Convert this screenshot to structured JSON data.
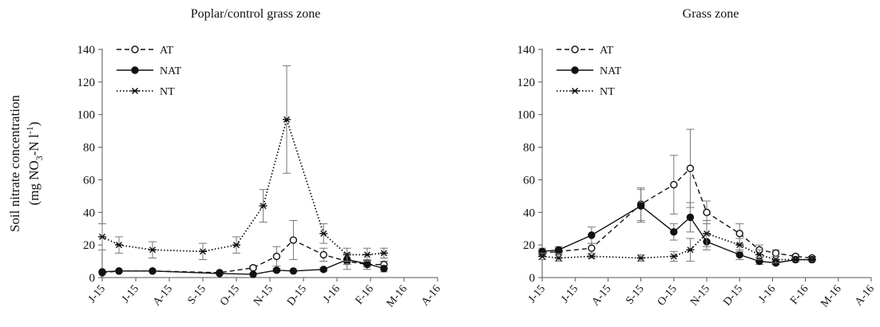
{
  "shared_ylabel": {
    "line1": "Soil nitrate concentration",
    "line2_prefix": "(mg NO",
    "line2_sub": "3",
    "line2_mid": "-N l",
    "line2_sup": "-1",
    "line2_suffix": ")"
  },
  "colors": {
    "AT": "#111111",
    "NAT": "#111111",
    "NT": "#111111",
    "axis": "#555555"
  },
  "chart_data": [
    {
      "type": "line",
      "title": "Poplar/control grass zone",
      "xlabel": "",
      "ylabel": "Soil nitrate concentration (mg NO3-N l-1)",
      "ylim": [
        0,
        140
      ],
      "yticks": [
        0,
        20,
        40,
        60,
        80,
        100,
        120,
        140
      ],
      "categories": [
        "J-15",
        "J-15",
        "A-15",
        "S-15",
        "O-15",
        "N-15",
        "D-15",
        "J-16",
        "F-16",
        "M-16",
        "A-16"
      ],
      "legend_position": "top-left",
      "grid": false,
      "series": [
        {
          "name": "AT",
          "marker": "open-circle",
          "line_style": "dashed",
          "x": [
            0,
            0.5,
            1.5,
            3.5,
            4.5,
            5.2,
            5.7,
            6.6,
            7.3,
            7.9,
            8.4
          ],
          "y": [
            3,
            4,
            4,
            3,
            6,
            13,
            23,
            14,
            10,
            8,
            8
          ],
          "err": [
            0,
            0,
            0,
            0,
            1,
            6,
            12,
            4,
            5,
            3,
            2
          ]
        },
        {
          "name": "NAT",
          "marker": "filled-circle",
          "line_style": "solid",
          "x": [
            0,
            0.5,
            1.5,
            3.5,
            4.5,
            5.2,
            5.7,
            6.6,
            7.3,
            7.9,
            8.4
          ],
          "y": [
            3.5,
            4,
            4,
            2.5,
            2,
            4.5,
            4,
            5,
            11,
            8.5,
            5.5
          ],
          "err": [
            0,
            0,
            0,
            0,
            0,
            1,
            0,
            1,
            3,
            2,
            2
          ]
        },
        {
          "name": "NT",
          "marker": "asterisk",
          "line_style": "dotted",
          "x": [
            0,
            0.5,
            1.5,
            3.0,
            4.0,
            4.8,
            5.5,
            6.6,
            7.3,
            7.9,
            8.4
          ],
          "y": [
            25,
            20,
            17,
            16,
            20,
            44,
            97,
            27,
            14,
            14,
            15
          ],
          "err": [
            8,
            5,
            5,
            5,
            5,
            10,
            33,
            6,
            4,
            4,
            3
          ]
        }
      ]
    },
    {
      "type": "line",
      "title": "Grass zone",
      "xlabel": "",
      "ylabel": "",
      "ylim": [
        0,
        140
      ],
      "yticks": [
        0,
        20,
        40,
        60,
        80,
        100,
        120,
        140
      ],
      "categories": [
        "J-15",
        "J-15",
        "A-15",
        "S-15",
        "O-15",
        "N-15",
        "D-15",
        "J-16",
        "F-16",
        "M-16",
        "A-16"
      ],
      "legend_position": "top-left",
      "grid": false,
      "series": [
        {
          "name": "AT",
          "marker": "open-circle",
          "line_style": "dashed",
          "x": [
            0,
            0.5,
            1.5,
            3.0,
            4.0,
            4.5,
            5.0,
            6.0,
            6.6,
            7.1,
            7.7,
            8.2
          ],
          "y": [
            15,
            16,
            18,
            45,
            57,
            67,
            40,
            27,
            17,
            15,
            13,
            12
          ],
          "err": [
            2,
            2,
            3,
            10,
            18,
            24,
            7,
            6,
            3,
            2,
            1,
            1
          ]
        },
        {
          "name": "NAT",
          "marker": "filled-circle",
          "line_style": "solid",
          "x": [
            0,
            0.5,
            1.5,
            3.0,
            4.0,
            4.5,
            5.0,
            6.0,
            6.6,
            7.1,
            7.7,
            8.2
          ],
          "y": [
            16,
            17,
            26,
            44,
            28,
            37,
            22,
            14,
            10,
            9,
            11,
            11
          ],
          "err": [
            2,
            2,
            5,
            10,
            5,
            9,
            5,
            3,
            2,
            1,
            1,
            1
          ]
        },
        {
          "name": "NT",
          "marker": "asterisk",
          "line_style": "dotted",
          "x": [
            0,
            0.5,
            1.5,
            3.0,
            4.0,
            4.5,
            5.0,
            6.0,
            6.6,
            7.1,
            7.7,
            8.2
          ],
          "y": [
            13,
            12,
            13,
            12,
            13,
            17,
            27,
            20,
            14,
            11,
            11,
            11
          ],
          "err": [
            2,
            2,
            1,
            2,
            3,
            7,
            8,
            4,
            3,
            2,
            1,
            1
          ]
        }
      ]
    }
  ]
}
